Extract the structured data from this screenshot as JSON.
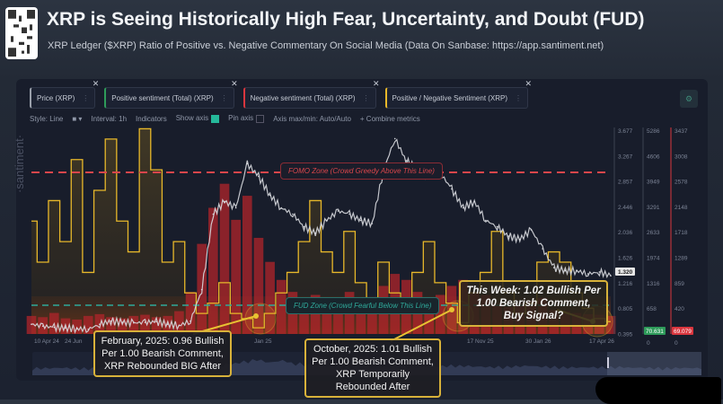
{
  "header": {
    "title": "XRP is Seeing Historically High Fear, Uncertainty, and Doubt (FUD)",
    "subtitle": "XRP Ledger ($XRP) Ratio of Positive vs. Negative Commentary On Social Media (Data On Sanbase: https://app.santiment.net)",
    "qr_icon": "qr-code-icon"
  },
  "metrics": [
    {
      "label": "Price (XRP)",
      "color": "#9aa0ab"
    },
    {
      "label": "Positive sentiment (Total) (XRP)",
      "color": "#2e9b5a"
    },
    {
      "label": "Negative sentiment (Total) (XRP)",
      "color": "#d9363e"
    },
    {
      "label": "Positive / Negative Sentiment (XRP)",
      "color": "#e8b82a"
    }
  ],
  "toolbar": {
    "style": "Style: Line",
    "interval": "Interval: 1h",
    "indicators": "Indicators",
    "show_axis": "Show axis",
    "show_axis_checked": true,
    "pin_axis": "Pin axis",
    "pin_axis_checked": false,
    "axis_maxmin": "Axis max/min: Auto/Auto",
    "combine": "+ Combine metrics"
  },
  "watermark": "·santiment·",
  "annotations": {
    "fomo": "FOMO Zone (Crowd Greedy Above This Line)",
    "fud": "FUD Zone (Crowd Fearful Below This Line)",
    "feb_2025": "February, 2025: 0.96 Bullish Per 1.00 Bearish Comment, XRP Rebounded BIG After",
    "oct_2025": "October, 2025: 1.01 Bullish Per 1.00 Bearish Comment, XRP Temporarily Rebounded After",
    "this_week": "This Week: 1.02 Bullish Per 1.00 Bearish Comment, Buy Signal?"
  },
  "chart_data": {
    "type": "line",
    "x_tick_labels": [
      "10 Apr 24",
      "24 Jun",
      "Jan 25",
      "17 Nov 25",
      "30 Jan 26",
      "17 Apr 26"
    ],
    "axes": {
      "price": {
        "ticks": [
          "3.677",
          "3.267",
          "2.857",
          "2.446",
          "2.036",
          "1.626",
          "1.216",
          "0.805",
          "0.395"
        ],
        "current": "1.320",
        "range": [
          0.395,
          3.677
        ]
      },
      "positive_sentiment": {
        "ticks": [
          "5286",
          "4606",
          "3949",
          "3291",
          "2633",
          "1974",
          "1316",
          "658",
          "0"
        ],
        "current": "70.631",
        "color": "#2e9b5a"
      },
      "negative_sentiment": {
        "ticks": [
          "3437",
          "3008",
          "2578",
          "2148",
          "1718",
          "1289",
          "859",
          "420",
          "0"
        ],
        "current": "69.079",
        "color": "#d9363e"
      }
    },
    "series": [
      {
        "name": "Price (XRP)",
        "color": "#d8dadf",
        "values": [
          0.55,
          0.52,
          0.5,
          0.49,
          0.48,
          0.47,
          0.55,
          0.6,
          0.58,
          0.57,
          0.58,
          0.59,
          0.55,
          0.53,
          0.6,
          1.1,
          2.3,
          2.5,
          2.4,
          3.1,
          2.9,
          2.6,
          2.4,
          2.3,
          2.1,
          2.0,
          2.2,
          2.35,
          2.3,
          2.2,
          2.15,
          3.0,
          3.5,
          3.15,
          3.0,
          2.9,
          2.95,
          2.7,
          2.4,
          2.5,
          2.2,
          2.1,
          1.95,
          1.9,
          2.05,
          1.75,
          1.45,
          1.4,
          1.4,
          1.35,
          1.38,
          1.32
        ]
      },
      {
        "name": "Positive / Negative Sentiment (XRP)",
        "color": "#e8b82a",
        "values": [
          2.0,
          1.6,
          2.2,
          1.8,
          2.6,
          1.5,
          2.3,
          2.8,
          2.0,
          1.7,
          2.9,
          2.5,
          1.6,
          1.8,
          1.3,
          1.1,
          1.2,
          1.4,
          1.1,
          1.05,
          0.96,
          1.1,
          1.3,
          1.5,
          1.8,
          2.2,
          1.7,
          1.5,
          1.9,
          1.4,
          1.2,
          1.6,
          1.3,
          1.1,
          1.5,
          1.8,
          1.4,
          1.2,
          1.01,
          1.3,
          1.5,
          1.9,
          1.3,
          1.1,
          1.2,
          1.6,
          1.7,
          1.6,
          1.3,
          1.15,
          1.05,
          1.02
        ]
      },
      {
        "name": "Negative sentiment (Total) (XRP)",
        "color": "#d9363e",
        "values": [
          300,
          280,
          350,
          260,
          240,
          300,
          330,
          280,
          260,
          300,
          320,
          280,
          300,
          380,
          700,
          1500,
          2100,
          2500,
          1900,
          2300,
          1600,
          1200,
          900,
          700,
          600,
          650,
          500,
          600,
          700,
          550,
          500,
          800,
          1000,
          900,
          700,
          600,
          650,
          800,
          900,
          700,
          650,
          500,
          450,
          500,
          550,
          600,
          400,
          380,
          350,
          330,
          320,
          300
        ]
      }
    ]
  }
}
